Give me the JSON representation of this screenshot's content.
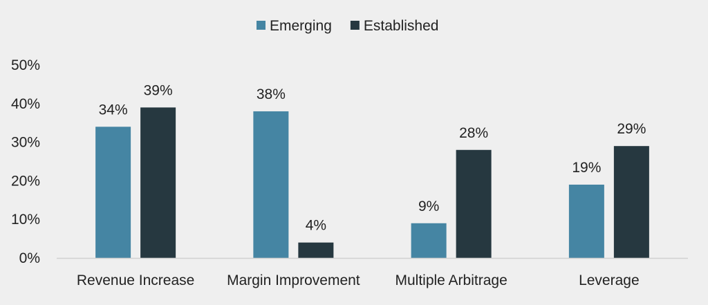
{
  "chart_data": {
    "type": "bar",
    "categories": [
      "Revenue Increase",
      "Margin Improvement",
      "Multiple Arbitrage",
      "Leverage"
    ],
    "series": [
      {
        "name": "Emerging",
        "color": "#4585a3",
        "values": [
          34,
          38,
          9,
          19
        ],
        "labels": [
          "34%",
          "38%",
          "9%",
          "19%"
        ]
      },
      {
        "name": "Established",
        "color": "#263840",
        "values": [
          39,
          4,
          28,
          29
        ],
        "labels": [
          "39%",
          "4%",
          "28%",
          "29%"
        ]
      }
    ],
    "ylim": [
      0,
      50
    ],
    "yticks": [
      0,
      10,
      20,
      30,
      40,
      50
    ],
    "ytick_labels": [
      "0%",
      "10%",
      "20%",
      "30%",
      "40%",
      "50%"
    ],
    "legend_position": "top-center",
    "grid": false,
    "title": "",
    "xlabel": "",
    "ylabel": ""
  }
}
